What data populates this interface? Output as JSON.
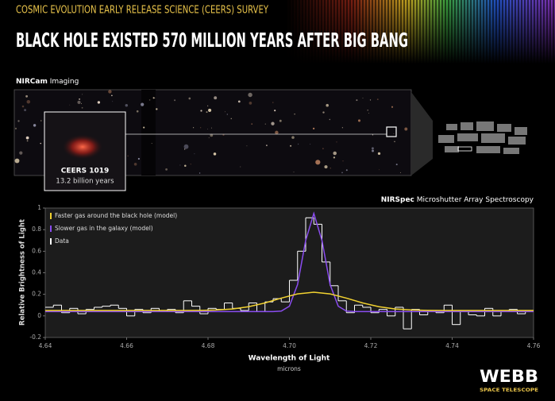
{
  "header": {
    "subtitle": "COSMIC EVOLUTION EARLY RELEASE SCIENCE (CEERS) SURVEY",
    "title": "BLACK HOLE EXISTED 570 MILLION YEARS AFTER BIG BANG"
  },
  "imaging": {
    "instrument": "NIRCam",
    "label": "Imaging",
    "inset_name": "CEERS 1019",
    "inset_age": "13.2 billion years"
  },
  "spectroscopy": {
    "instrument": "NIRSpec",
    "label": "Microshutter Array Spectroscopy"
  },
  "logo": {
    "name": "WEBB",
    "tagline": "SPACE TELESCOPE"
  },
  "chart_data": {
    "type": "line",
    "x_label": "Wavelength of Light",
    "x_unit": "microns",
    "y_label": "Relative Brightness of Light",
    "xlim": [
      4.64,
      4.76
    ],
    "xticks": [
      4.64,
      4.66,
      4.68,
      {
        "value": 4.7,
        "label": "4.70"
      },
      4.72,
      4.74,
      4.76
    ],
    "ylim": [
      -0.2,
      1
    ],
    "yticks": [
      -0.2,
      0,
      0.2,
      0.4,
      0.6,
      0.8,
      1
    ],
    "legend": "upper left",
    "series": [
      {
        "name": "Faster gas around the black hole (model)",
        "color": "#f2d230",
        "drawstyle": "line",
        "x": [
          4.64,
          4.67,
          4.674,
          4.678,
          4.682,
          4.686,
          4.69,
          4.694,
          4.698,
          4.702,
          4.706,
          4.71,
          4.714,
          4.718,
          4.722,
          4.726,
          4.73,
          4.734,
          4.738,
          4.742,
          4.76
        ],
        "values": [
          0.05,
          0.05,
          0.05,
          0.051,
          0.055,
          0.064,
          0.085,
          0.12,
          0.165,
          0.204,
          0.22,
          0.204,
          0.165,
          0.12,
          0.085,
          0.064,
          0.055,
          0.051,
          0.05,
          0.05,
          0.05
        ]
      },
      {
        "name": "Slower gas in the galaxy (model)",
        "color": "#8a4cf0",
        "drawstyle": "line",
        "x": [
          4.64,
          4.694,
          4.696,
          4.698,
          4.7,
          4.702,
          4.704,
          4.706,
          4.708,
          4.71,
          4.712,
          4.714,
          4.716,
          4.76
        ],
        "values": [
          0.04,
          0.04,
          0.04,
          0.045,
          0.09,
          0.29,
          0.7,
          0.95,
          0.7,
          0.29,
          0.09,
          0.045,
          0.04,
          0.04
        ]
      },
      {
        "name": "Data",
        "color": "#ffffff",
        "drawstyle": "steps",
        "x": [
          4.64,
          4.642,
          4.644,
          4.646,
          4.648,
          4.65,
          4.652,
          4.654,
          4.656,
          4.658,
          4.66,
          4.662,
          4.664,
          4.666,
          4.668,
          4.67,
          4.672,
          4.674,
          4.676,
          4.678,
          4.68,
          4.682,
          4.684,
          4.686,
          4.688,
          4.69,
          4.692,
          4.694,
          4.696,
          4.698,
          4.7,
          4.702,
          4.704,
          4.706,
          4.708,
          4.71,
          4.712,
          4.714,
          4.716,
          4.718,
          4.72,
          4.722,
          4.724,
          4.726,
          4.728,
          4.73,
          4.732,
          4.734,
          4.736,
          4.738,
          4.74,
          4.742,
          4.744,
          4.746,
          4.748,
          4.75,
          4.752,
          4.754,
          4.756,
          4.758
        ],
        "values": [
          0.08,
          0.1,
          0.03,
          0.07,
          0.02,
          0.06,
          0.08,
          0.09,
          0.1,
          0.07,
          0.0,
          0.06,
          0.03,
          0.07,
          0.04,
          0.06,
          0.03,
          0.14,
          0.09,
          0.02,
          0.07,
          0.06,
          0.12,
          0.07,
          0.05,
          0.12,
          0.04,
          0.13,
          0.16,
          0.13,
          0.33,
          0.6,
          0.91,
          0.85,
          0.5,
          0.28,
          0.14,
          0.03,
          0.1,
          0.08,
          0.03,
          0.06,
          0.0,
          0.08,
          -0.12,
          0.06,
          0.01,
          0.05,
          0.03,
          0.1,
          -0.08,
          0.05,
          0.01,
          0.0,
          0.07,
          0.0,
          0.04,
          0.06,
          0.02,
          0.05
        ]
      }
    ]
  }
}
